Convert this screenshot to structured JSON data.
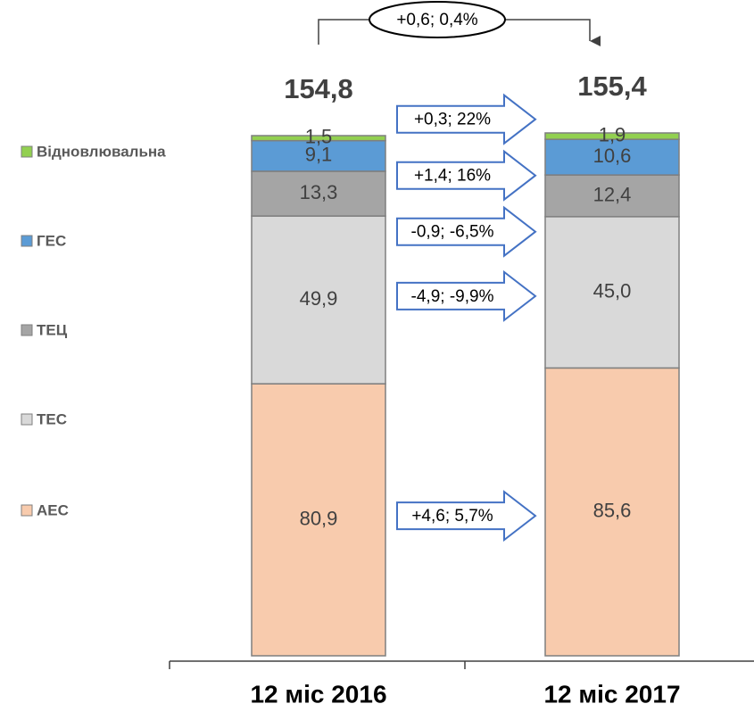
{
  "chart_data": {
    "type": "stacked_bar",
    "categories": [
      "12 міс 2016",
      "12 міс 2017"
    ],
    "series": [
      {
        "name": "АЕС",
        "color": "#f8cbad",
        "values": [
          80.9,
          85.6
        ],
        "value_labels": [
          "80,9",
          "85,6"
        ],
        "change": "+4,6; 5,7%"
      },
      {
        "name": "ТЕС",
        "color": "#d9d9d9",
        "values": [
          49.9,
          45.0
        ],
        "value_labels": [
          "49,9",
          "45,0"
        ],
        "change": "-4,9; -9,9%"
      },
      {
        "name": "ТЕЦ",
        "color": "#a5a5a5",
        "values": [
          13.3,
          12.4
        ],
        "value_labels": [
          "13,3",
          "12,4"
        ],
        "change": "-0,9; -6,5%"
      },
      {
        "name": "ГЕС",
        "color": "#5b9bd5",
        "values": [
          9.1,
          10.6
        ],
        "value_labels": [
          "9,1",
          "10,6"
        ],
        "change": "+1,4; 16%"
      },
      {
        "name": "Відновлювальна",
        "color": "#92d050",
        "values": [
          1.5,
          1.9
        ],
        "value_labels": [
          "1,5",
          "1,9"
        ],
        "change": "+0,3; 22%"
      }
    ],
    "totals": [
      154.8,
      155.4
    ],
    "total_labels": [
      "154,8",
      "155,4"
    ],
    "total_change": "+0,6; 0,4%",
    "legend": "left"
  }
}
